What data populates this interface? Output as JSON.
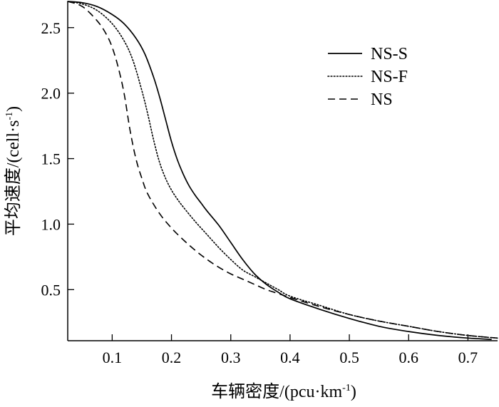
{
  "chart_data": {
    "type": "line",
    "xlabel": "车辆密度/(pcu·km",
    "xlabel_sup": "-1",
    "xlabel_tail": ")",
    "ylabel": "平均速度/(cell·s",
    "ylabel_sup": "-1",
    "ylabel_tail": ")",
    "xlim": [
      0.025,
      0.75
    ],
    "ylim": [
      0.11,
      2.7
    ],
    "xticks": [
      0.1,
      0.2,
      0.3,
      0.4,
      0.5,
      0.6,
      0.7
    ],
    "xtick_labels": [
      "0.1",
      "0.2",
      "0.3",
      "0.4",
      "0.5",
      "0.6",
      "0.7"
    ],
    "yticks": [
      0.5,
      1.0,
      1.5,
      2.0,
      2.5
    ],
    "ytick_labels": [
      "0.5",
      "1.0",
      "1.5",
      "2.0",
      "2.5"
    ],
    "legend_position": "top-right",
    "grid": false,
    "series": [
      {
        "name": "NS-S",
        "dash": "solid",
        "x": [
          0.025,
          0.05,
          0.075,
          0.1,
          0.12,
          0.14,
          0.155,
          0.17,
          0.18,
          0.19,
          0.2,
          0.21,
          0.22,
          0.23,
          0.24,
          0.25,
          0.26,
          0.28,
          0.3,
          0.32,
          0.34,
          0.36,
          0.38,
          0.4,
          0.45,
          0.5,
          0.55,
          0.6,
          0.65,
          0.7,
          0.74
        ],
        "y": [
          2.7,
          2.69,
          2.66,
          2.6,
          2.53,
          2.42,
          2.3,
          2.12,
          1.97,
          1.8,
          1.63,
          1.49,
          1.38,
          1.29,
          1.22,
          1.16,
          1.1,
          0.99,
          0.86,
          0.73,
          0.62,
          0.54,
          0.48,
          0.43,
          0.35,
          0.28,
          0.22,
          0.18,
          0.15,
          0.13,
          0.12
        ]
      },
      {
        "name": "NS-F",
        "dash": "dotted",
        "x": [
          0.025,
          0.05,
          0.075,
          0.1,
          0.12,
          0.135,
          0.15,
          0.16,
          0.17,
          0.18,
          0.19,
          0.2,
          0.21,
          0.22,
          0.24,
          0.26,
          0.28,
          0.3,
          0.32,
          0.34,
          0.36,
          0.38,
          0.4,
          0.45,
          0.5,
          0.55,
          0.6,
          0.65,
          0.7,
          0.75
        ],
        "y": [
          2.7,
          2.68,
          2.63,
          2.53,
          2.4,
          2.25,
          2.02,
          1.84,
          1.64,
          1.47,
          1.35,
          1.26,
          1.19,
          1.13,
          1.02,
          0.92,
          0.82,
          0.73,
          0.65,
          0.6,
          0.55,
          0.5,
          0.45,
          0.38,
          0.31,
          0.26,
          0.22,
          0.18,
          0.15,
          0.13
        ]
      },
      {
        "name": "NS",
        "dash": "dashed",
        "x": [
          0.025,
          0.05,
          0.075,
          0.09,
          0.1,
          0.11,
          0.12,
          0.13,
          0.14,
          0.15,
          0.16,
          0.18,
          0.2,
          0.22,
          0.24,
          0.26,
          0.28,
          0.3,
          0.32,
          0.34,
          0.36,
          0.38,
          0.4,
          0.45,
          0.5,
          0.55,
          0.6,
          0.65,
          0.7,
          0.75
        ],
        "y": [
          2.7,
          2.66,
          2.55,
          2.45,
          2.35,
          2.2,
          2.0,
          1.72,
          1.5,
          1.35,
          1.23,
          1.08,
          0.97,
          0.88,
          0.8,
          0.73,
          0.67,
          0.62,
          0.58,
          0.54,
          0.5,
          0.47,
          0.44,
          0.37,
          0.31,
          0.26,
          0.22,
          0.18,
          0.15,
          0.13
        ]
      }
    ]
  }
}
